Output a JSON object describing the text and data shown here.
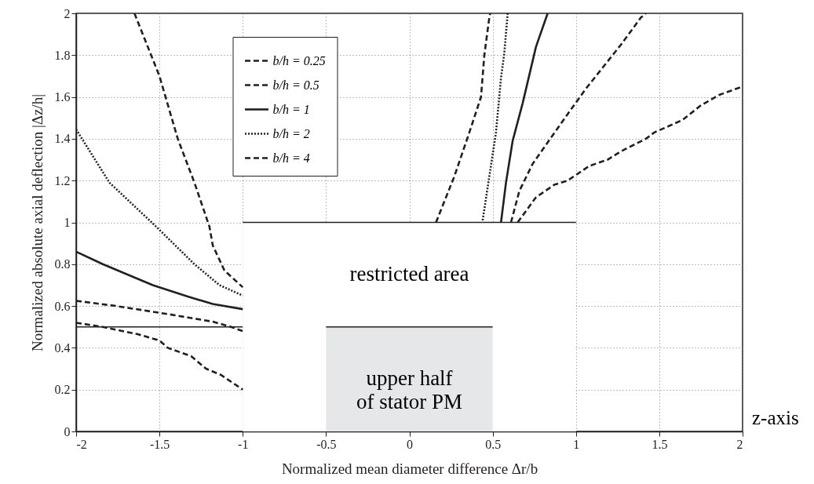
{
  "chart_data": {
    "type": "line",
    "xlabel": "Normalized mean diameter difference Δr/b",
    "ylabel": "Normalized absolute axial deflection |Δz/h|",
    "xlim": [
      -2,
      2
    ],
    "ylim": [
      0,
      2
    ],
    "xticks": [
      -2,
      -1.5,
      -1,
      -0.5,
      0,
      0.5,
      1,
      1.5,
      2
    ],
    "yticks": [
      0,
      0.2,
      0.4,
      0.6,
      0.8,
      1,
      1.2,
      1.4,
      1.6,
      1.8,
      2
    ],
    "grid": true,
    "legend": "top left",
    "series": [
      {
        "type": "area",
        "name": "restricted area",
        "color": "#ffffff",
        "x": [
          -1,
          1
        ],
        "values": [
          1,
          1
        ]
      },
      {
        "type": "area",
        "name": "upper half\nof stator PM",
        "color": "#e6e7e9",
        "x": [
          -0.5,
          0.5
        ],
        "values": [
          0.5,
          0.5
        ]
      },
      {
        "type": "line",
        "color": "#231f20",
        "line_style": "solid",
        "x": [
          -2,
          -1
        ],
        "values": [
          0.5,
          0.5
        ]
      },
      {
        "name": "b/h = 0.25",
        "color": "#231f20",
        "line_style": "dashed",
        "x": [
          -2,
          -1.84,
          -1.63,
          -1.5,
          -1.45,
          -1.31,
          -1.22,
          -1.13,
          -1,
          0,
          0.65,
          0.76,
          0.87,
          0.95,
          1.08,
          1.19,
          1.27,
          1.42,
          1.47,
          1.64,
          1.75,
          1.86,
          2
        ],
        "values": [
          0.52,
          0.5,
          0.465,
          0.435,
          0.4,
          0.36,
          0.3,
          0.27,
          0.2,
          null,
          1,
          1.12,
          1.18,
          1.2,
          1.27,
          1.3,
          1.34,
          1.4,
          1.43,
          1.49,
          1.56,
          1.61,
          1.65
        ]
      },
      {
        "name": "b/h = 0.5",
        "color": "#231f20",
        "line_style": "dashed",
        "x": [
          -2,
          -1.76,
          -1.44,
          -1.18,
          -1.07,
          -1,
          0,
          0.61,
          0.66,
          0.74,
          0.89,
          0.97,
          1.06,
          1.16,
          1.27,
          1.39,
          1.42
        ],
        "values": [
          0.625,
          0.6,
          0.56,
          0.525,
          0.5,
          0.48,
          null,
          1,
          1.15,
          1.28,
          1.45,
          1.54,
          1.64,
          1.74,
          1.85,
          1.98,
          2
        ]
      },
      {
        "name": "b/h = 1",
        "color": "#231f20",
        "line_style": "solid",
        "x": [
          -2,
          -1.84,
          -1.54,
          -1.33,
          -1.18,
          -1,
          0,
          0.55,
          0.58,
          0.62,
          0.68,
          0.76,
          0.83
        ],
        "values": [
          0.86,
          0.8,
          0.7,
          0.645,
          0.61,
          0.585,
          null,
          1,
          1.19,
          1.39,
          1.57,
          1.84,
          2
        ]
      },
      {
        "name": "b/h = 2",
        "color": "#231f20",
        "line_style": "dotted",
        "x": [
          -2,
          -1.8,
          -1.52,
          -1.29,
          -1.14,
          -1,
          0,
          0.44,
          0.48,
          0.52,
          0.55,
          0.57,
          0.59
        ],
        "values": [
          1.445,
          1.19,
          0.98,
          0.8,
          0.7,
          0.65,
          null,
          1.01,
          1.22,
          1.43,
          1.69,
          1.81,
          2
        ]
      },
      {
        "name": "b/h = 4",
        "color": "#231f20",
        "line_style": "dashed",
        "x": [
          -1.65,
          -1.5,
          -1.39,
          -1.29,
          -1.2,
          -1.18,
          -1.11,
          -1,
          0,
          0.16,
          0.27,
          0.36,
          0.43,
          0.45,
          0.48,
          0.485
        ],
        "values": [
          2,
          1.7,
          1.4,
          1.19,
          0.98,
          0.89,
          0.77,
          0.69,
          null,
          1,
          1.22,
          1.43,
          1.6,
          1.8,
          1.98,
          2
        ]
      }
    ],
    "annotations": [
      "z-axis"
    ]
  }
}
